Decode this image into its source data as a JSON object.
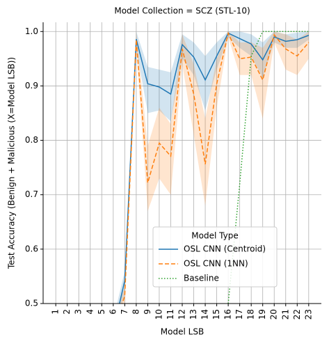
{
  "chart_data": {
    "type": "line",
    "title": "Model Collection = SCZ (STL-10)",
    "xlabel": "Model LSB",
    "ylabel": "Test Accuracy (Benign + Malicious (X=Model LSB))",
    "x": [
      1,
      2,
      3,
      4,
      5,
      6,
      7,
      8,
      9,
      10,
      11,
      12,
      13,
      14,
      15,
      16,
      17,
      18,
      19,
      20,
      21,
      22,
      23
    ],
    "xlim": [
      -0.1,
      24.1
    ],
    "xticks": [
      1,
      2,
      3,
      4,
      5,
      6,
      7,
      8,
      9,
      10,
      11,
      12,
      13,
      14,
      15,
      16,
      17,
      18,
      19,
      20,
      21,
      22,
      23
    ],
    "ylim": [
      0.5,
      1.017
    ],
    "yticks": [
      0.5,
      0.6,
      0.7,
      0.8,
      0.9,
      {
        "value": 1,
        "label": "1.0"
      }
    ],
    "grid": true,
    "legend": {
      "title": "Model Type",
      "position": "lower right"
    },
    "series": [
      {
        "name": "OSL CNN (Centroid)",
        "color": "#1f77b4",
        "dash": "solid",
        "values": [
          null,
          null,
          null,
          null,
          null,
          0.45,
          0.542,
          0.986,
          0.904,
          0.898,
          0.885,
          0.976,
          0.953,
          0.911,
          0.955,
          0.997,
          0.987,
          0.977,
          0.948,
          0.99,
          0.982,
          0.985,
          0.993
        ],
        "lower": [
          null,
          null,
          null,
          null,
          null,
          0.43,
          0.52,
          0.97,
          0.85,
          0.855,
          0.835,
          0.95,
          0.92,
          0.855,
          0.93,
          0.99,
          0.97,
          0.955,
          0.915,
          0.98,
          0.97,
          0.97,
          0.985
        ],
        "upper": [
          null,
          null,
          null,
          null,
          null,
          0.47,
          0.56,
          1.0,
          0.935,
          0.93,
          0.925,
          0.995,
          0.98,
          0.955,
          0.98,
          1.0,
          1.0,
          0.995,
          0.98,
          1.0,
          0.995,
          0.998,
          1.0
        ]
      },
      {
        "name": "OSL CNN (1NN)",
        "color": "#ff7f0e",
        "dash": "dashed",
        "values": [
          null,
          null,
          null,
          null,
          null,
          0.45,
          0.514,
          0.985,
          0.722,
          0.795,
          0.771,
          0.968,
          0.885,
          0.756,
          0.904,
          0.997,
          0.95,
          0.953,
          0.911,
          0.994,
          0.968,
          0.955,
          0.98
        ],
        "lower": [
          null,
          null,
          null,
          null,
          null,
          0.43,
          0.5,
          0.97,
          0.67,
          0.73,
          0.7,
          0.94,
          0.81,
          0.68,
          0.86,
          0.99,
          0.92,
          0.92,
          0.84,
          0.98,
          0.93,
          0.92,
          0.95
        ],
        "upper": [
          null,
          null,
          null,
          null,
          null,
          0.47,
          0.53,
          1.0,
          0.79,
          0.86,
          0.83,
          0.995,
          0.94,
          0.84,
          0.95,
          1.0,
          0.98,
          0.98,
          0.97,
          1.0,
          0.995,
          0.985,
          1.0
        ]
      },
      {
        "name": "Baseline",
        "color": "#2ca02c",
        "dash": "dotted",
        "values": [
          null,
          null,
          null,
          null,
          null,
          null,
          null,
          null,
          null,
          null,
          null,
          null,
          null,
          null,
          null,
          0.5,
          0.72,
          0.955,
          1.0,
          1.0,
          1.0,
          1.0,
          1.0
        ]
      }
    ]
  }
}
